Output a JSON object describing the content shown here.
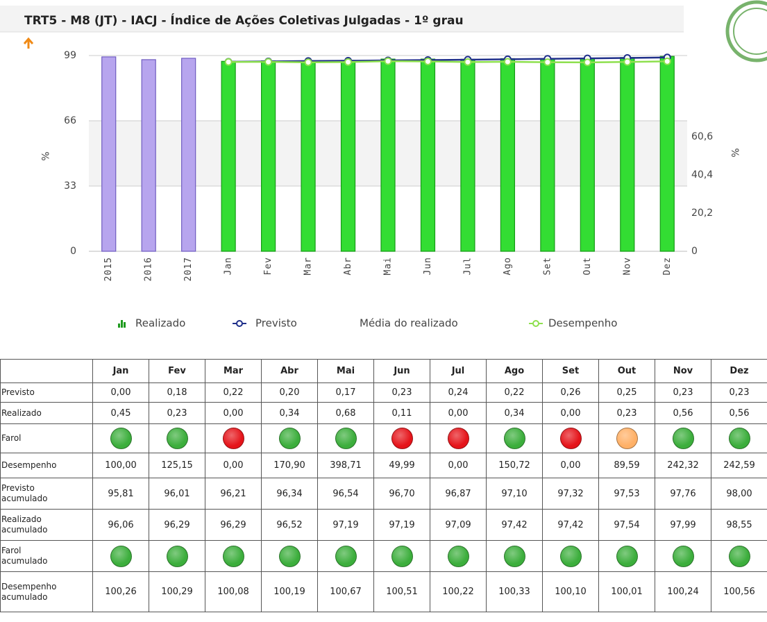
{
  "chart_data": {
    "type": "bar_line",
    "title": "TRT5 - M8 (JT) - IACJ - Índice de Ações Coletivas Julgadas - 1º grau",
    "y_label": "%",
    "y2_label": "%",
    "categories": [
      "2015",
      "2016",
      "2017",
      "Jan",
      "Fev",
      "Mar",
      "Abr",
      "Mai",
      "Jun",
      "Jul",
      "Ago",
      "Set",
      "Out",
      "Nov",
      "Dez"
    ],
    "series": [
      {
        "name": "Realizado",
        "type": "bar",
        "colors": [
          "#b7a5ee",
          "#b7a5ee",
          "#b7a5ee",
          "#33dd33",
          "#33dd33",
          "#33dd33",
          "#33dd33",
          "#33dd33",
          "#33dd33",
          "#33dd33",
          "#33dd33",
          "#33dd33",
          "#33dd33",
          "#33dd33",
          "#33dd33"
        ],
        "values": [
          98.3,
          96.9,
          97.6,
          96.06,
          96.29,
          96.29,
          96.52,
          97.19,
          97.19,
          97.09,
          97.42,
          97.42,
          97.54,
          97.99,
          98.55
        ]
      },
      {
        "name": "Previsto",
        "type": "line",
        "color": "#1f2f8a",
        "values": [
          null,
          null,
          null,
          95.81,
          96.01,
          96.21,
          96.34,
          96.54,
          96.7,
          96.87,
          97.1,
          97.32,
          97.53,
          97.76,
          98.0
        ]
      },
      {
        "name": "Média do realizado",
        "type": "line",
        "values": [
          null,
          null,
          null,
          null,
          null,
          null,
          null,
          null,
          null,
          null,
          null,
          null,
          null,
          null,
          null
        ]
      },
      {
        "name": "Desempenho",
        "type": "line",
        "axis": "y2",
        "color": "#8ee04e",
        "values": [
          null,
          null,
          null,
          100.26,
          100.29,
          100.08,
          100.19,
          100.67,
          100.51,
          100.22,
          100.33,
          100.1,
          100.01,
          100.24,
          100.56
        ]
      }
    ],
    "ylim": [
      0,
      106
    ],
    "yticks": [
      0,
      33,
      66,
      99
    ],
    "y2lim": [
      0,
      111
    ],
    "y2ticks": [
      0,
      {
        "value": 20.2,
        "label": "20,2"
      },
      {
        "value": 40.4,
        "label": "40,4"
      },
      {
        "value": 60.6,
        "label": "60,6"
      }
    ],
    "grid": true
  },
  "table": {
    "columns": [
      "Jan",
      "Fev",
      "Mar",
      "Abr",
      "Mai",
      "Jun",
      "Jul",
      "Ago",
      "Set",
      "Out",
      "Nov",
      "Dez"
    ],
    "rows": [
      {
        "label": "Previsto",
        "cells": [
          "0,00",
          "0,18",
          "0,22",
          "0,20",
          "0,17",
          "0,23",
          "0,24",
          "0,22",
          "0,26",
          "0,25",
          "0,23",
          "0,23"
        ]
      },
      {
        "label": "Realizado",
        "cells": [
          "0,45",
          "0,23",
          "0,00",
          "0,34",
          "0,68",
          "0,11",
          "0,00",
          "0,34",
          "0,00",
          "0,23",
          "0,56",
          "0,56"
        ]
      },
      {
        "label": "Farol",
        "lights": [
          "#3cae3c",
          "#3cae3c",
          "#e5141a",
          "#3cae3c",
          "#3cae3c",
          "#e5141a",
          "#e5141a",
          "#3cae3c",
          "#e5141a",
          "#ffb066",
          "#3cae3c",
          "#3cae3c"
        ]
      },
      {
        "label": "Desempenho",
        "cells": [
          "100,00",
          "125,15",
          "0,00",
          "170,90",
          "398,71",
          "49,99",
          "0,00",
          "150,72",
          "0,00",
          "89,59",
          "242,32",
          "242,59"
        ]
      },
      {
        "label": "Previsto acumulado",
        "cells": [
          "95,81",
          "96,01",
          "96,21",
          "96,34",
          "96,54",
          "96,70",
          "96,87",
          "97,10",
          "97,32",
          "97,53",
          "97,76",
          "98,00"
        ]
      },
      {
        "label": "Realizado acumulado",
        "cells": [
          "96,06",
          "96,29",
          "96,29",
          "96,52",
          "97,19",
          "97,19",
          "97,09",
          "97,42",
          "97,42",
          "97,54",
          "97,99",
          "98,55"
        ]
      },
      {
        "label": "Farol acumulado",
        "lights": [
          "#3cae3c",
          "#3cae3c",
          "#3cae3c",
          "#3cae3c",
          "#3cae3c",
          "#3cae3c",
          "#3cae3c",
          "#3cae3c",
          "#3cae3c",
          "#3cae3c",
          "#3cae3c",
          "#3cae3c"
        ]
      },
      {
        "label": "Desempenho acumulado",
        "cells": [
          "100,26",
          "100,29",
          "100,08",
          "100,19",
          "100,67",
          "100,51",
          "100,22",
          "100,33",
          "100,10",
          "100,01",
          "100,24",
          "100,56"
        ]
      }
    ]
  }
}
